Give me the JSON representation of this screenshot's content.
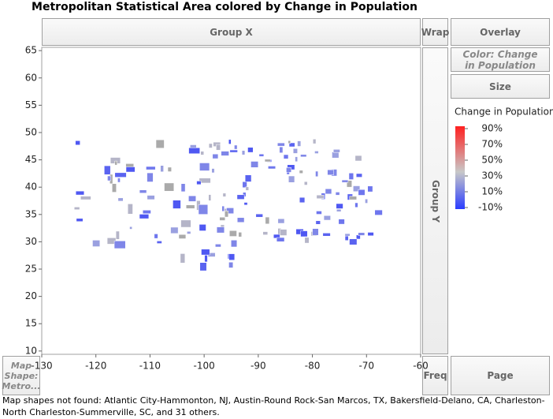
{
  "title": "Metropolitan Statistical Area colored by Change in Population",
  "drop_zones": {
    "group_x": "Group X",
    "wrap": "Wrap",
    "overlay": "Overlay",
    "color": "Color: Change in Population",
    "size": "Size",
    "group_y": "Group Y",
    "map_shape": "Map Shape: Metro...",
    "freq": "Freq",
    "page": "Page"
  },
  "plot": {
    "xlim": [
      -130,
      -60
    ],
    "xticks": [
      -130,
      -120,
      -110,
      -100,
      -90,
      -80,
      -70,
      -60
    ],
    "ylim": [
      9.4,
      65.6
    ],
    "yticks": [
      10,
      15,
      20,
      25,
      30,
      35,
      40,
      45,
      50,
      55,
      60,
      65
    ]
  },
  "legend": {
    "title": "Change in Population",
    "range": [
      -10,
      90
    ],
    "ticks": [
      {
        "value": 90,
        "label": "90%"
      },
      {
        "value": 70,
        "label": "70%"
      },
      {
        "value": 50,
        "label": "50%"
      },
      {
        "value": 30,
        "label": "30%"
      },
      {
        "value": 10,
        "label": "10%"
      },
      {
        "value": -10,
        "label": "-10%"
      }
    ]
  },
  "note": "Map shapes not found: Atlantic City-Hammonton, NJ, Austin-Round Rock-San Marcos, TX, Bakersfield-Delano, CA, Charleston-North Charleston-Summerville, SC, and 31 others."
}
